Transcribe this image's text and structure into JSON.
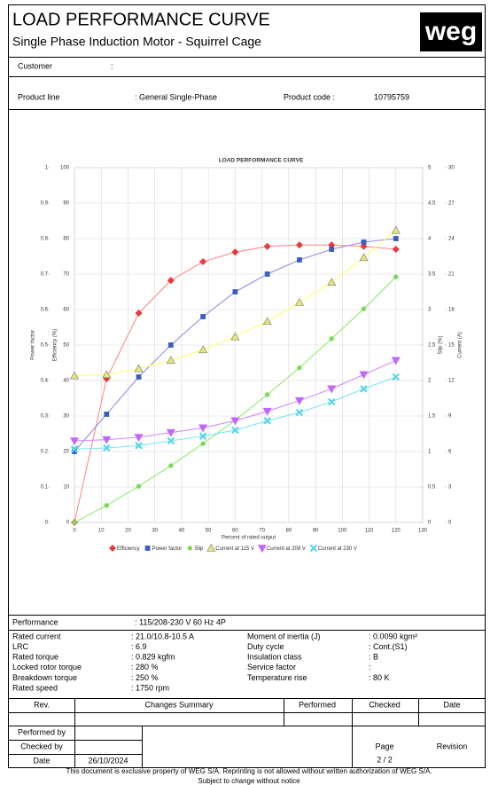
{
  "header": {
    "title": "LOAD PERFORMANCE CURVE",
    "subtitle": "Single Phase Induction Motor - Squirrel Cage",
    "logo": "weg"
  },
  "customer": {
    "label": "Customer",
    "value": ":"
  },
  "product": {
    "line_label": "Product line",
    "line_value": ": General Single-Phase",
    "code_label": "Product code :",
    "code_value": "10795759"
  },
  "chart_data": {
    "type": "line",
    "title": "LOAD PERFORMANCE CURVE",
    "xlabel": "Percent of rated output",
    "x": [
      0,
      12,
      24,
      36,
      48,
      60,
      72,
      84,
      96,
      108,
      120
    ],
    "xlim": [
      0,
      130
    ],
    "xticks": [
      0,
      10,
      20,
      30,
      40,
      50,
      60,
      70,
      80,
      90,
      100,
      110,
      120,
      130
    ],
    "grid": true,
    "y_axes": [
      {
        "label": "Power factor",
        "lim": [
          0,
          1
        ],
        "ticks": [
          0,
          0.1,
          0.2,
          0.3,
          0.4,
          0.5,
          0.6,
          0.7,
          0.8,
          0.9,
          1
        ]
      },
      {
        "label": "Efficiency (%)",
        "lim": [
          0,
          100
        ],
        "ticks": [
          0,
          10,
          20,
          30,
          40,
          50,
          60,
          70,
          80,
          90,
          100
        ]
      },
      {
        "label": "Slip (%)",
        "lim": [
          0,
          5
        ],
        "ticks": [
          0,
          0.5,
          1,
          1.5,
          2,
          2.5,
          3,
          3.5,
          4,
          4.5,
          5
        ]
      },
      {
        "label": "Current (A)",
        "lim": [
          0,
          30
        ],
        "ticks": [
          0,
          3,
          6,
          9,
          12,
          15,
          18,
          21,
          24,
          27,
          30
        ]
      }
    ],
    "series": [
      {
        "name": "Efficiency",
        "axis": 1,
        "marker": "diamond",
        "color": "#e8393b",
        "line_color": "#ff8a8a",
        "values": [
          0,
          40.5,
          59,
          68.2,
          73.5,
          76.2,
          77.8,
          78.2,
          78.2,
          77.8,
          77
        ]
      },
      {
        "name": "Power factor",
        "axis": 0,
        "marker": "square",
        "color": "#3b5cc4",
        "line_color": "#8f8fe0",
        "values": [
          0.2,
          0.305,
          0.41,
          0.5,
          0.58,
          0.65,
          0.7,
          0.74,
          0.77,
          0.79,
          0.8
        ]
      },
      {
        "name": "Slip",
        "axis": 2,
        "marker": "circle",
        "color": "#7ed957",
        "line_color": "#8fec6a",
        "values": [
          0,
          0.24,
          0.51,
          0.8,
          1.11,
          1.44,
          1.8,
          2.18,
          2.59,
          3.01,
          3.46
        ]
      },
      {
        "name": "Current at 115 V",
        "axis": 3,
        "marker": "triangle-up",
        "color": "#e6e67a",
        "line_color": "#ffff70",
        "values": [
          12.4,
          12.5,
          13,
          13.7,
          14.6,
          15.7,
          17,
          18.6,
          20.3,
          22.4,
          24.7
        ]
      },
      {
        "name": "Current at 208 V",
        "axis": 3,
        "marker": "triangle-down",
        "color": "#c266ff",
        "line_color": "#d08cff",
        "values": [
          6.9,
          7,
          7.2,
          7.6,
          8,
          8.6,
          9.4,
          10.3,
          11.3,
          12.5,
          13.7
        ]
      },
      {
        "name": "Current at 230 V",
        "axis": 3,
        "marker": "x",
        "color": "#55d8ec",
        "line_color": "#7ce6f2",
        "values": [
          6.2,
          6.3,
          6.5,
          6.9,
          7.3,
          7.8,
          8.6,
          9.3,
          10.2,
          11.3,
          12.3
        ]
      }
    ]
  },
  "performance": {
    "label": "Performance",
    "value": ": 115/208-230 V 60 Hz 4P"
  },
  "specs": {
    "left": [
      [
        "Rated current",
        ": 21.0/10.8-10.5 A"
      ],
      [
        "LRC",
        ": 6.9"
      ],
      [
        "Rated torque",
        ": 0.829 kgfm"
      ],
      [
        "Locked rotor torque",
        ": 280 %"
      ],
      [
        "Breakdown torque",
        ": 250 %"
      ],
      [
        "Rated speed",
        ": 1750 rpm"
      ]
    ],
    "right": [
      [
        "Moment of inertia (J)",
        ": 0.0090 kgm²"
      ],
      [
        "Duty cycle",
        ": Cont.(S1)"
      ],
      [
        "Insulation class",
        ": B"
      ],
      [
        "Service factor",
        ":"
      ],
      [
        "Temperature rise",
        ": 80 K"
      ]
    ]
  },
  "revisions": {
    "headers": [
      "Rev.",
      "Changes Summary",
      "Performed",
      "Checked",
      "Date"
    ]
  },
  "signoff": {
    "performed_by": "Performed by",
    "checked_by": "Checked by",
    "date_label": "Date",
    "date": "26/10/2024",
    "page_label": "Page",
    "page": "2 / 2",
    "revision_label": "Revision"
  },
  "footer": {
    "notice": "This document is exclusive property of WEG S/A. Reprinting is not allowed without written authorization of WEG S/A.",
    "change": "Subject to change without notice"
  }
}
